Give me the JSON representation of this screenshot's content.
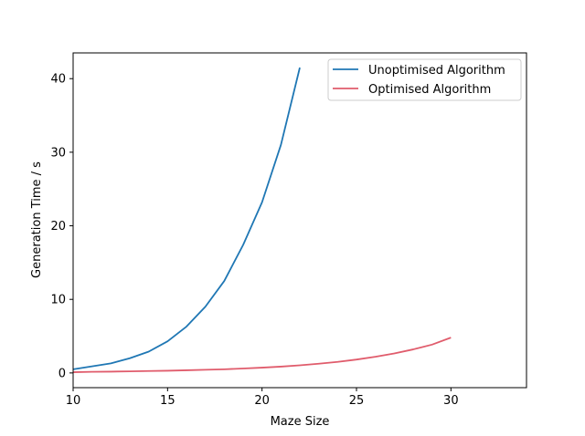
{
  "chart_data": {
    "type": "line",
    "title": "",
    "xlabel": "Maze Size",
    "ylabel": "Generation Time / s",
    "xlim": [
      10,
      34
    ],
    "ylim": [
      -2,
      43.5
    ],
    "xticks": [
      10,
      15,
      20,
      25,
      30
    ],
    "yticks": [
      0,
      10,
      20,
      30,
      40
    ],
    "grid": false,
    "legend_position": "top-right",
    "series": [
      {
        "name": "Unoptimised Algorithm",
        "color": "#1f77b4",
        "x": [
          10,
          11,
          12,
          13,
          14,
          15,
          16,
          17,
          18,
          19,
          20,
          21,
          22
        ],
        "y": [
          0.5,
          0.9,
          1.3,
          2.0,
          2.9,
          4.3,
          6.3,
          9.0,
          12.5,
          17.4,
          23.2,
          31.0,
          41.5
        ]
      },
      {
        "name": "Optimised Algorithm",
        "color": "#e05c6c",
        "x": [
          10,
          11,
          12,
          13,
          14,
          15,
          16,
          17,
          18,
          19,
          20,
          21,
          22,
          23,
          24,
          25,
          26,
          27,
          28,
          29,
          30
        ],
        "y": [
          0.1,
          0.15,
          0.18,
          0.22,
          0.26,
          0.3,
          0.36,
          0.43,
          0.5,
          0.6,
          0.72,
          0.86,
          1.04,
          1.25,
          1.5,
          1.82,
          2.2,
          2.65,
          3.2,
          3.85,
          4.8
        ]
      }
    ]
  }
}
